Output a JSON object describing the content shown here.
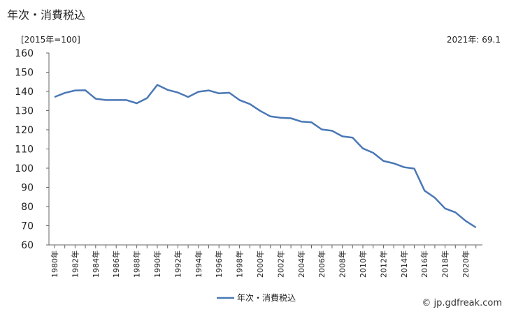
{
  "chart_data": {
    "type": "line",
    "title": "年次・消費税込",
    "unit_label": "[2015年=100]",
    "latest_label": "2021年: 69.1",
    "watermark": "© jp.gdfreak.com",
    "ylim": [
      60,
      160
    ],
    "yticks": [
      60,
      70,
      80,
      90,
      100,
      110,
      120,
      130,
      140,
      150,
      160
    ],
    "grid": false,
    "legend_placement": "bottom-center",
    "series_color": "#4a78b5",
    "x": [
      1980,
      1981,
      1982,
      1983,
      1984,
      1985,
      1986,
      1987,
      1988,
      1989,
      1990,
      1991,
      1992,
      1993,
      1994,
      1995,
      1996,
      1997,
      1998,
      1999,
      2000,
      2001,
      2002,
      2003,
      2004,
      2005,
      2006,
      2007,
      2008,
      2009,
      2010,
      2011,
      2012,
      2013,
      2014,
      2015,
      2016,
      2017,
      2018,
      2019,
      2020,
      2021
    ],
    "xtick_labels": [
      "1980年",
      "1982年",
      "1984年",
      "1986年",
      "1988年",
      "1990年",
      "1992年",
      "1994年",
      "1996年",
      "1998年",
      "2000年",
      "2002年",
      "2004年",
      "2006年",
      "2008年",
      "2010年",
      "2012年",
      "2014年",
      "2016年",
      "2018年",
      "2020年"
    ],
    "series": [
      {
        "name": "年次・消費税込",
        "values": [
          137.1,
          139.2,
          140.5,
          140.6,
          136.2,
          135.5,
          135.5,
          135.5,
          133.8,
          136.5,
          143.4,
          140.8,
          139.4,
          137.1,
          139.8,
          140.5,
          139.0,
          139.3,
          135.5,
          133.4,
          129.9,
          127.0,
          126.3,
          126.0,
          124.3,
          123.9,
          120.2,
          119.5,
          116.6,
          115.9,
          110.3,
          108.0,
          103.8,
          102.5,
          100.5,
          99.8,
          88.3,
          84.6,
          79.0,
          77.0,
          72.5,
          69.1
        ]
      }
    ]
  }
}
